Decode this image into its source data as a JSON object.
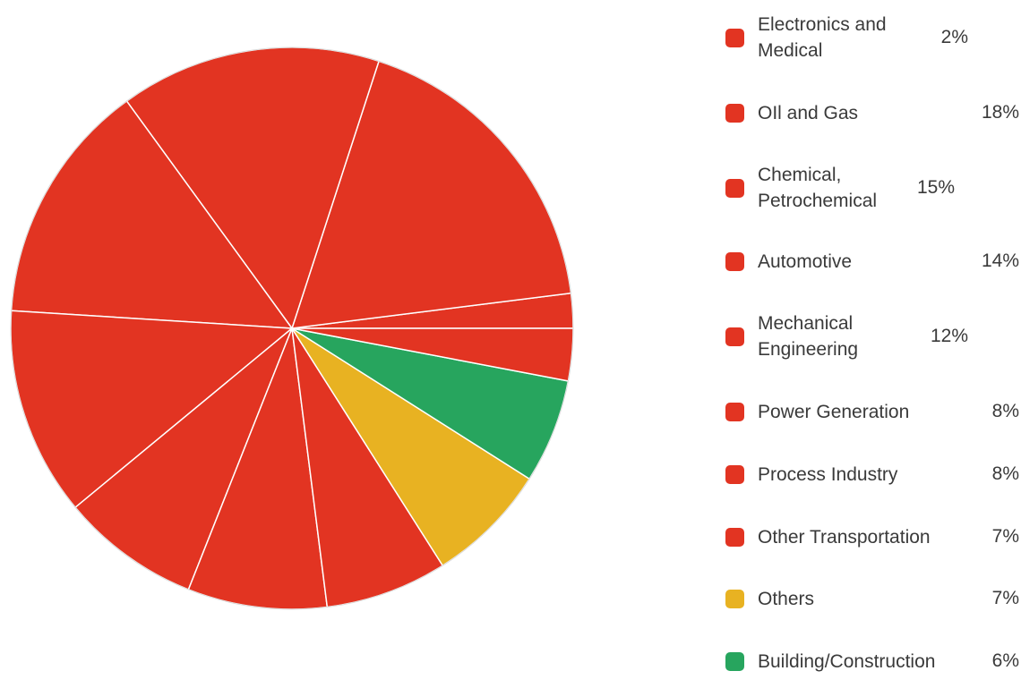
{
  "colors": {
    "red": "#E23422",
    "yellow": "#E8B222",
    "green": "#27A55E",
    "slice_border": "#ffffff"
  },
  "chart_data": {
    "type": "pie",
    "start": "3 o'clock, counter-clockwise",
    "slices": [
      {
        "label": "Electronics and Medical",
        "value": 2,
        "display": "2%",
        "color": "#E23422"
      },
      {
        "label": "OIl and Gas",
        "value": 18,
        "display": "18%",
        "color": "#E23422"
      },
      {
        "label": "Chemical, Petrochemical",
        "value": 15,
        "display": "15%",
        "color": "#E23422"
      },
      {
        "label": "Automotive",
        "value": 14,
        "display": "14%",
        "color": "#E23422"
      },
      {
        "label": "Mechanical Engineering",
        "value": 12,
        "display": "12%",
        "color": "#E23422"
      },
      {
        "label": "Power Generation",
        "value": 8,
        "display": "8%",
        "color": "#E23422"
      },
      {
        "label": "Process Industry",
        "value": 8,
        "display": "8%",
        "color": "#E23422"
      },
      {
        "label": "Other Transportation",
        "value": 7,
        "display": "7%",
        "color": "#E23422"
      },
      {
        "label": "Others",
        "value": 7,
        "display": "7%",
        "color": "#E8B222"
      },
      {
        "label": "Building/Construction",
        "value": 6,
        "display": "6%",
        "color": "#27A55E"
      },
      {
        "label": "",
        "value": 3,
        "display": "",
        "color": "#E23422"
      }
    ],
    "legend_placement": "right"
  }
}
